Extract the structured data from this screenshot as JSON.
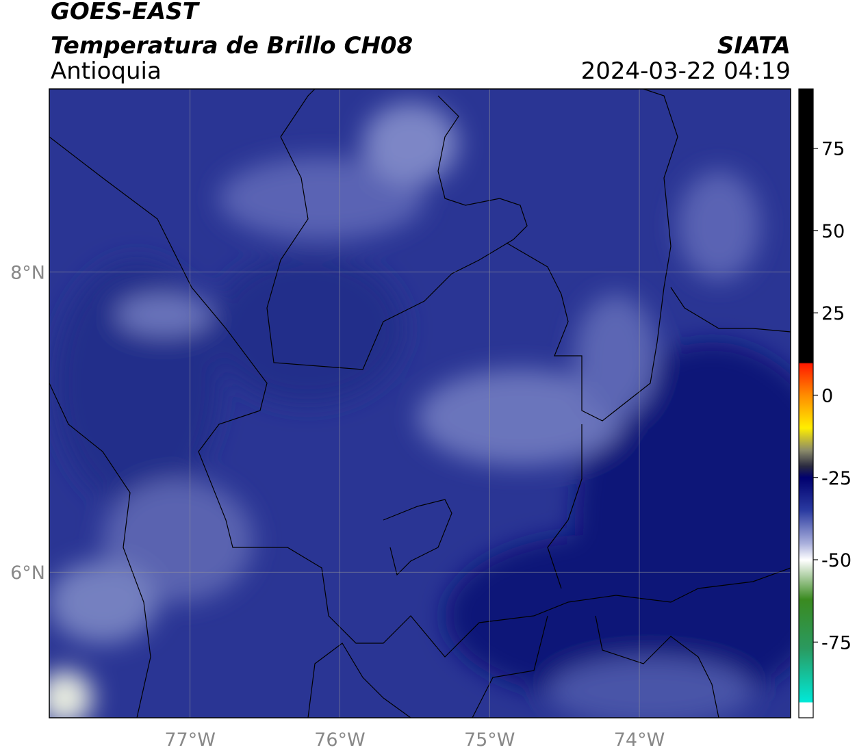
{
  "header": {
    "satellite": "GOES-EAST",
    "product": "Temperatura de Brillo CH08",
    "region": "Antioquia",
    "source": "SIATA",
    "timestamp": "2024-03-22 04:19"
  },
  "map": {
    "xlim": [
      -77.94,
      -72.99
    ],
    "ylim": [
      5.03,
      9.22
    ],
    "lon_ticks": [
      {
        "value": -77,
        "label": "77°W"
      },
      {
        "value": -76,
        "label": "76°W"
      },
      {
        "value": -75,
        "label": "75°W"
      },
      {
        "value": -74,
        "label": "74°W"
      }
    ],
    "lat_ticks": [
      {
        "value": 8,
        "label": "8°N"
      },
      {
        "value": 6,
        "label": "6°N"
      }
    ]
  },
  "colorbar": {
    "lim": [
      -98,
      93
    ],
    "ticks": [
      75,
      50,
      25,
      0,
      -25,
      -50,
      -75
    ]
  }
}
